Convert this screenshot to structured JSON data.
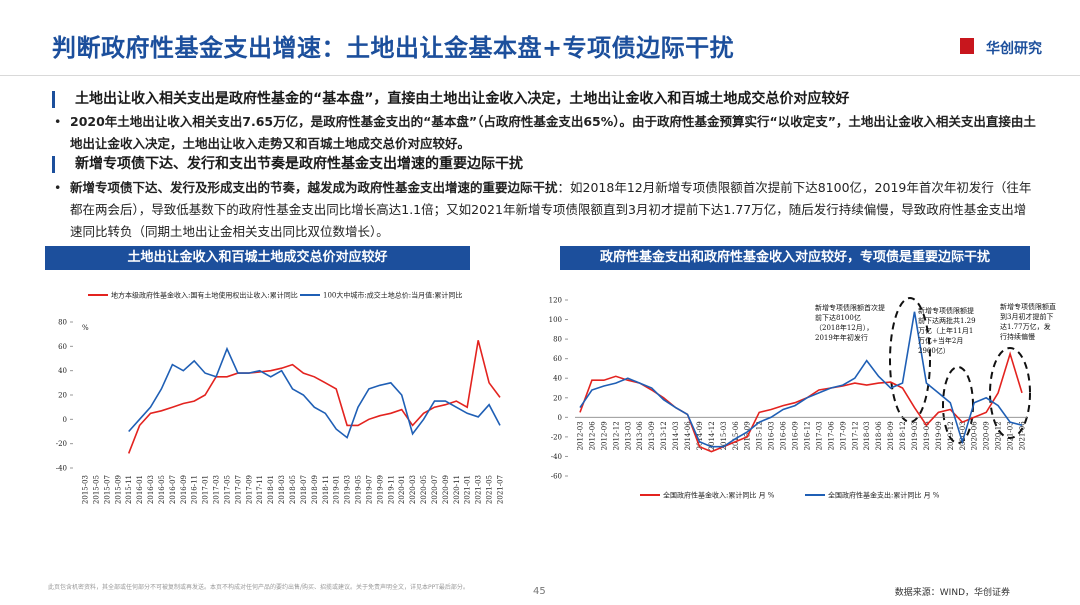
{
  "header": {
    "title": "判断政府性基金支出增速：土地出让金基本盘+专项债边际干扰",
    "logo": "华创研究"
  },
  "sections": [
    {
      "heading": "土地出让收入相关支出是政府性基金的“基本盘”，直接由土地出让金收入决定，土地出让金收入和百城土地成交总价对应较好",
      "lead": "2020年土地出让收入相关支出7.65万亿，是政府性基金支出的“基本盘”（占政府性基金支出65%）。由于政府性基金预算实行“以收定支”，土地出让金收入相关支出直接由土地出让金收入决定，土地出让收入走势又和百城土地成交总价对应较好。"
    },
    {
      "heading": "新增专项债下达、发行和支出节奏是政府性基金支出增速的重要边际干扰",
      "lead": "新增专项债下达、发行及形成支出的节奏，越发成为政府性基金支出增速的重要边际干扰",
      "text": "：如2018年12月新增专项债限额首次提前下达8100亿，2019年首次年初发行（往年都在两会后），导致低基数下的政府性基金支出同比增长高达1.1倍；又如2021年新增专项债限额直到3月初才提前下达1.77万亿，随后发行持续偏慢，导致政府性基金支出增速同比转负（同期土地出让金相关支出同比双位数增长）。"
    }
  ],
  "chart_data": [
    {
      "type": "line",
      "title": "土地出让金收入和百城土地成交总价对应较好",
      "ylabel": "%",
      "legend": "top",
      "grid": false,
      "categories": [
        "2015-03",
        "2015-05",
        "2015-07",
        "2015-09",
        "2015-11",
        "2016-01",
        "2016-03",
        "2016-05",
        "2016-07",
        "2016-09",
        "2016-11",
        "2017-01",
        "2017-03",
        "2017-05",
        "2017-07",
        "2017-09",
        "2017-11",
        "2018-01",
        "2018-03",
        "2018-05",
        "2018-07",
        "2018-09",
        "2018-11",
        "2019-01",
        "2019-03",
        "2019-05",
        "2019-07",
        "2019-09",
        "2019-11",
        "2020-01",
        "2020-03",
        "2020-05",
        "2020-07",
        "2020-09",
        "2020-11",
        "2021-01",
        "2021-03",
        "2021-05",
        "2021-07"
      ],
      "series": [
        {
          "name": "地方本级政府性基金收入:国有土地使用权出让收入:累计同比",
          "color": "#e3231f",
          "values": [
            null,
            null,
            null,
            null,
            -28,
            -5,
            5,
            7,
            10,
            13,
            15,
            20,
            35,
            35,
            38,
            38,
            39,
            40,
            42,
            45,
            38,
            35,
            30,
            25,
            -5,
            -5,
            0,
            3,
            5,
            8,
            -5,
            5,
            10,
            12,
            15,
            10,
            65,
            30,
            18
          ]
        },
        {
          "name": "100大中城市:成交土地总价:当月值:累计同比",
          "color": "#1f5fb5",
          "values": [
            null,
            null,
            null,
            null,
            -10,
            0,
            10,
            25,
            45,
            40,
            48,
            38,
            35,
            58,
            38,
            38,
            40,
            35,
            40,
            25,
            20,
            10,
            5,
            -8,
            -15,
            10,
            25,
            28,
            30,
            20,
            -12,
            0,
            15,
            15,
            10,
            5,
            2,
            12,
            -5
          ]
        }
      ],
      "ylim": [
        -40,
        80
      ],
      "yticks": [
        -40,
        -20,
        0,
        20,
        40,
        60,
        80
      ]
    },
    {
      "type": "line",
      "title": "政府性基金支出和政府性基金收入对应较好，专项债是重要边际干扰",
      "legend": "bottom",
      "grid": false,
      "categories": [
        "2012-03",
        "2012-06",
        "2012-09",
        "2012-12",
        "2013-03",
        "2013-06",
        "2013-09",
        "2013-12",
        "2014-03",
        "2014-06",
        "2014-09",
        "2014-12",
        "2015-03",
        "2015-06",
        "2015-09",
        "2015-12",
        "2016-03",
        "2016-06",
        "2016-09",
        "2016-12",
        "2017-03",
        "2017-06",
        "2017-09",
        "2017-12",
        "2018-03",
        "2018-06",
        "2018-09",
        "2018-12",
        "2019-03",
        "2019-06",
        "2019-09",
        "2019-12",
        "2020-03",
        "2020-06",
        "2020-09",
        "2020-12",
        "2021-03",
        "2021-06"
      ],
      "series": [
        {
          "name": "全国政府性基金收入:累计同比 月 %",
          "color": "#e3231f",
          "values": [
            5,
            38,
            38,
            42,
            38,
            35,
            28,
            20,
            10,
            3,
            -30,
            -35,
            -30,
            -25,
            -20,
            5,
            8,
            12,
            15,
            20,
            28,
            30,
            32,
            35,
            33,
            35,
            36,
            30,
            10,
            -8,
            5,
            8,
            -5,
            0,
            5,
            25,
            65,
            25
          ]
        },
        {
          "name": "全国政府性基金支出:累计同比 月 %",
          "color": "#1f5fb5",
          "values": [
            10,
            28,
            32,
            35,
            40,
            35,
            30,
            18,
            10,
            3,
            -25,
            -30,
            -30,
            -22,
            -15,
            -5,
            0,
            8,
            12,
            20,
            25,
            30,
            33,
            40,
            58,
            42,
            30,
            35,
            108,
            35,
            25,
            15,
            -25,
            15,
            20,
            12,
            -5,
            -8
          ]
        }
      ],
      "ylim": [
        -60,
        120
      ],
      "yticks": [
        -60,
        -40,
        -20,
        0,
        20,
        40,
        60,
        80,
        100,
        120
      ],
      "annotations": [
        "新增专项债限额首次提前下达8100亿（2018年12月），2019年年初发行",
        "新增专项债限额提前下达两批共1.29万亿（上年11月1万亿+当年2月2900亿）",
        "新增专项债限额直到3月初才提前下达1.77万亿，发行持续偏慢"
      ]
    }
  ],
  "footer": {
    "disclaimer": "此页包含机密资料，其全部或任何部分不可被复制或再发送。本页不构成对任何产品的要约出售/购买、招揽或建议。关于免责声明全文，详见本PPT最后部分。",
    "page": "45",
    "source": "数据来源：WIND，华创证券"
  }
}
